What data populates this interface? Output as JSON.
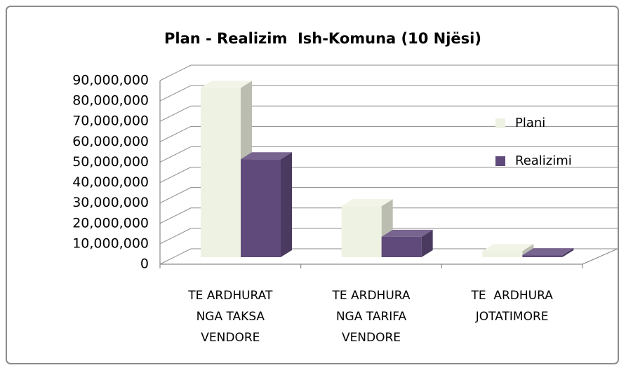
{
  "chart_data": {
    "type": "bar3d",
    "title": "Plan - Realizim  Ish-Komuna (10 Njësi)",
    "categories": [
      "TE ARDHURAT\nNGA TAKSA\nVENDORE",
      "TE ARDHURA\nNGA TARIFA\nVENDORE",
      "TE  ARDHURA\nJOTATIMORE"
    ],
    "series": [
      {
        "name": "Plani",
        "color": "#eef2e2",
        "values": [
          83000000,
          25000000,
          3000000
        ]
      },
      {
        "name": "Realizimi",
        "color": "#604a7b",
        "values": [
          48000000,
          10000000,
          1000000
        ]
      }
    ],
    "ylim": [
      0,
      90000000
    ],
    "yticks": [
      0,
      {
        "value": 10000000,
        "label": "10,000,000"
      },
      {
        "value": 20000000,
        "label": "20,000,000"
      },
      {
        "value": 30000000,
        "label": "30,000,000"
      },
      {
        "value": 40000000,
        "label": "40,000,000"
      },
      {
        "value": 50000000,
        "label": "50,000,000"
      },
      {
        "value": 60000000,
        "label": "60,000,000"
      },
      {
        "value": 70000000,
        "label": "70,000,000"
      },
      {
        "value": 80000000,
        "label": "80,000,000"
      },
      {
        "value": 90000000,
        "label": "90,000,000"
      }
    ],
    "grid": true,
    "legend": "right"
  }
}
